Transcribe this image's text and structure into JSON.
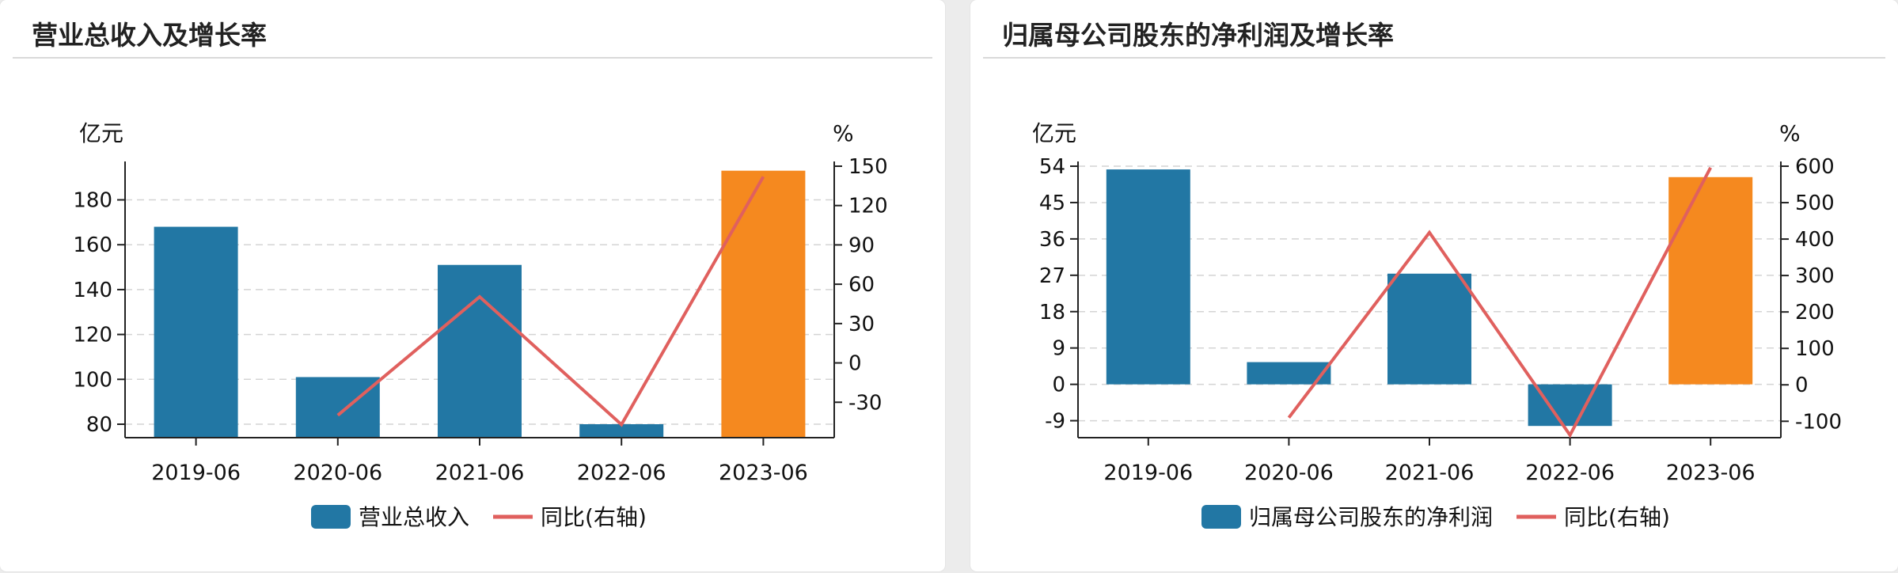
{
  "panels": [
    {
      "title": "营业总收入及增长率",
      "chart_data": {
        "type": "bar",
        "categories": [
          "2019-06",
          "2020-06",
          "2021-06",
          "2022-06",
          "2023-06"
        ],
        "series": [
          {
            "name": "营业总收入",
            "type": "bar",
            "axis": "left",
            "values": [
              168,
              101,
              151,
              80,
              193
            ],
            "colors": [
              "#2277a4",
              "#2277a4",
              "#2277a4",
              "#2277a4",
              "#f5891f"
            ]
          },
          {
            "name": "同比(右轴)",
            "type": "line",
            "axis": "right",
            "values": [
              null,
              -39.9,
              50.4,
              -47.0,
              142.0
            ],
            "color": "#e0605e"
          }
        ],
        "y_left": {
          "label": "亿元",
          "ticks": [
            80,
            100,
            120,
            140,
            160,
            180
          ],
          "range": [
            74,
            195
          ],
          "bar_base": 74
        },
        "y_right": {
          "label": "%",
          "ticks": [
            -30,
            0,
            30,
            60,
            90,
            120,
            150
          ],
          "range": [
            -57,
            150
          ]
        },
        "grid": true,
        "legend": "bottom-center"
      }
    },
    {
      "title": "归属母公司股东的净利润及增长率",
      "chart_data": {
        "type": "bar",
        "categories": [
          "2019-06",
          "2020-06",
          "2021-06",
          "2022-06",
          "2023-06"
        ],
        "series": [
          {
            "name": "归属母公司股东的净利润",
            "type": "bar",
            "axis": "left",
            "values": [
              53.2,
              5.5,
              27.4,
              -10.3,
              51.3
            ],
            "colors": [
              "#2277a4",
              "#2277a4",
              "#2277a4",
              "#2277a4",
              "#f5891f"
            ]
          },
          {
            "name": "同比(右轴)",
            "type": "line",
            "axis": "right",
            "values": [
              null,
              -90,
              418,
              -138,
              596
            ],
            "color": "#e0605e"
          }
        ],
        "y_left": {
          "label": "亿元",
          "ticks": [
            -9,
            0,
            9,
            18,
            27,
            36,
            45,
            54
          ],
          "range": [
            -13.2,
            54
          ],
          "bar_base": 0
        },
        "y_right": {
          "label": "%",
          "ticks": [
            -100,
            0,
            100,
            200,
            300,
            400,
            500,
            600
          ],
          "range": [
            -145,
            600
          ]
        },
        "grid": true,
        "legend": "bottom-center"
      }
    }
  ]
}
